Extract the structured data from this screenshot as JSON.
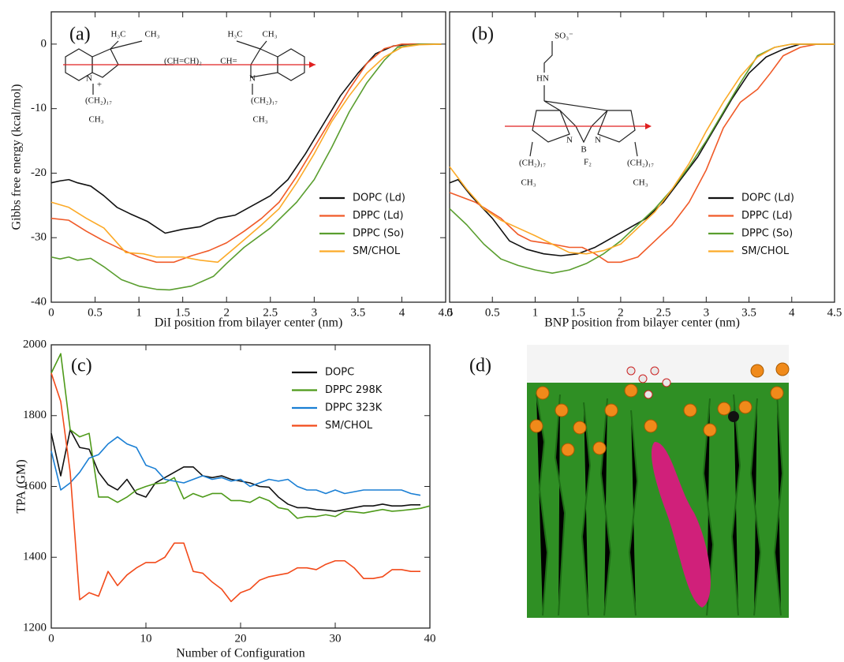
{
  "chart_data": [
    {
      "type": "line",
      "panel_label": "(a)",
      "xlabel": "DiI position from bilayer center (nm)",
      "ylabel": "Gibbs free energy (kcal/mol)",
      "xlim": [
        0,
        4.5
      ],
      "ylim": [
        -40,
        5
      ],
      "xticks": [
        0,
        0.5,
        1,
        1.5,
        2,
        2.5,
        3,
        3.5,
        4,
        4.5
      ],
      "yticks": [
        -40,
        -30,
        -20,
        -10,
        0
      ],
      "legend_position": "center-right",
      "annotations": [
        "H₃C",
        "CH₃",
        "(CH=CH)₂",
        "CH=",
        "H₃C",
        "CH₃",
        "N",
        "+",
        "N",
        "(CH₂)₁₇",
        "CH₃",
        "(CH₂)₁₇",
        "CH₃"
      ],
      "series": [
        {
          "name": "DOPC (Ld)",
          "color": "#111111",
          "x": [
            0,
            0.1,
            0.2,
            0.3,
            0.45,
            0.6,
            0.75,
            0.9,
            1.1,
            1.3,
            1.5,
            1.7,
            1.9,
            2.1,
            2.3,
            2.5,
            2.7,
            2.9,
            3.1,
            3.3,
            3.5,
            3.7,
            3.9,
            4.1,
            4.3,
            4.45
          ],
          "values": [
            -21.5,
            -21.2,
            -21,
            -21.5,
            -22,
            -23.5,
            -25.3,
            -26.3,
            -27.5,
            -29.3,
            -28.7,
            -28.3,
            -27,
            -26.5,
            -25,
            -23.5,
            -21,
            -17,
            -12.5,
            -8,
            -4.5,
            -1.5,
            -0.3,
            0,
            0,
            0
          ]
        },
        {
          "name": "DPPC (Ld)",
          "color": "#f05a28",
          "x": [
            0,
            0.2,
            0.4,
            0.6,
            0.8,
            1,
            1.2,
            1.4,
            1.6,
            1.8,
            2,
            2.2,
            2.4,
            2.6,
            2.8,
            3,
            3.2,
            3.4,
            3.6,
            3.8,
            4,
            4.45
          ],
          "values": [
            -27,
            -27.3,
            -29,
            -30.5,
            -31.8,
            -33,
            -33.8,
            -33.8,
            -32.8,
            -32,
            -30.8,
            -29,
            -27,
            -24.5,
            -20.5,
            -16,
            -11.5,
            -7,
            -3,
            -0.7,
            0,
            0
          ]
        },
        {
          "name": "DPPC (So)",
          "color": "#5a9e2f",
          "x": [
            0,
            0.1,
            0.2,
            0.3,
            0.45,
            0.6,
            0.8,
            1,
            1.2,
            1.35,
            1.6,
            1.85,
            2,
            2.2,
            2.5,
            2.8,
            3,
            3.2,
            3.4,
            3.6,
            3.8,
            3.95,
            4.2,
            4.45
          ],
          "values": [
            -33,
            -33.3,
            -33,
            -33.5,
            -33.2,
            -34.5,
            -36.5,
            -37.5,
            -38,
            -38.1,
            -37.5,
            -36,
            -34,
            -31.5,
            -28.5,
            -24.5,
            -21,
            -16,
            -10.5,
            -6,
            -2.5,
            -0.5,
            0,
            0
          ]
        },
        {
          "name": "SM/CHOL",
          "color": "#fcaa28",
          "x": [
            0,
            0.2,
            0.4,
            0.6,
            0.85,
            1.05,
            1.2,
            1.5,
            1.7,
            1.9,
            2.1,
            2.4,
            2.6,
            2.8,
            3,
            3.2,
            3.4,
            3.6,
            3.8,
            4,
            4.2,
            4.45
          ],
          "values": [
            -24.5,
            -25.3,
            -27,
            -28.5,
            -32.3,
            -32.5,
            -33,
            -33,
            -33.5,
            -33.8,
            -31.5,
            -28,
            -25.5,
            -21.5,
            -17,
            -12,
            -8,
            -4.5,
            -2,
            -0.5,
            -0.1,
            0
          ]
        }
      ]
    },
    {
      "type": "line",
      "panel_label": "(b)",
      "xlabel": "BNP position from bilayer center (nm)",
      "xlim": [
        0,
        4.5
      ],
      "ylim": [
        -40,
        5
      ],
      "xticks": [
        0,
        0.5,
        1,
        1.5,
        2,
        2.5,
        3,
        3.5,
        4,
        4.5
      ],
      "legend_position": "center-right",
      "annotations": [
        "SO₃⁻",
        "HN",
        "N",
        "B",
        "N",
        "F₂",
        "(CH₂)₁₇",
        "CH₃",
        "(CH₂)₁₇",
        "CH₃"
      ],
      "series": [
        {
          "name": "DOPC (Ld)",
          "color": "#111111",
          "x": [
            0,
            0.1,
            0.25,
            0.5,
            0.7,
            0.9,
            1.1,
            1.3,
            1.5,
            1.7,
            1.9,
            2.1,
            2.3,
            2.5,
            2.7,
            2.9,
            3.1,
            3.3,
            3.5,
            3.7,
            3.9,
            4.1,
            4.5
          ],
          "values": [
            -21.5,
            -21,
            -23.5,
            -27,
            -30.5,
            -31.8,
            -32.5,
            -32.8,
            -32.5,
            -31.5,
            -30,
            -28.5,
            -27,
            -24.5,
            -21,
            -17.5,
            -13,
            -8.5,
            -4.5,
            -2,
            -0.8,
            0,
            0
          ]
        },
        {
          "name": "DPPC (Ld)",
          "color": "#f05a28",
          "x": [
            0,
            0.3,
            0.6,
            0.8,
            0.95,
            1.2,
            1.4,
            1.55,
            1.7,
            1.85,
            2,
            2.2,
            2.4,
            2.6,
            2.8,
            3,
            3.2,
            3.4,
            3.6,
            3.75,
            3.9,
            4.1,
            4.3,
            4.5
          ],
          "values": [
            -23,
            -24.5,
            -27,
            -29.5,
            -30.5,
            -31,
            -31.5,
            -31.5,
            -32.5,
            -33.8,
            -33.8,
            -33,
            -30.5,
            -28,
            -24.5,
            -19.5,
            -13,
            -9,
            -7,
            -4.5,
            -1.8,
            -0.5,
            0,
            0
          ]
        },
        {
          "name": "DPPC (So)",
          "color": "#5a9e2f",
          "x": [
            0,
            0.2,
            0.4,
            0.6,
            0.8,
            1,
            1.2,
            1.4,
            1.6,
            1.8,
            2,
            2.2,
            2.4,
            2.6,
            2.8,
            3,
            3.2,
            3.4,
            3.6,
            3.8,
            4,
            4.5
          ],
          "values": [
            -25.5,
            -28,
            -31,
            -33.3,
            -34.3,
            -35,
            -35.5,
            -35,
            -34,
            -32.5,
            -30.5,
            -28,
            -25.5,
            -22.5,
            -19,
            -15,
            -10.5,
            -6,
            -1.8,
            -0.5,
            0,
            0
          ]
        },
        {
          "name": "SM/CHOL",
          "color": "#fcaa28",
          "x": [
            0,
            0.2,
            0.4,
            0.6,
            0.8,
            1,
            1.2,
            1.4,
            1.6,
            1.8,
            2,
            2.2,
            2.4,
            2.6,
            2.8,
            3,
            3.2,
            3.4,
            3.6,
            3.8,
            4,
            4.5
          ],
          "values": [
            -19,
            -22.5,
            -25.5,
            -27.3,
            -28.5,
            -29.7,
            -31,
            -32.3,
            -32.5,
            -32,
            -31,
            -28.5,
            -26,
            -22.5,
            -18.5,
            -13.5,
            -9,
            -5,
            -2,
            -0.5,
            0,
            0
          ]
        }
      ]
    },
    {
      "type": "line",
      "panel_label": "(c)",
      "xlabel": "Number of Configuration",
      "ylabel": "TPA (GM)",
      "xlim": [
        0,
        40
      ],
      "ylim": [
        1200,
        2000
      ],
      "xticks": [
        0,
        10,
        20,
        30,
        40
      ],
      "yticks": [
        1200,
        1400,
        1600,
        1800,
        2000
      ],
      "legend_position": "upper-right",
      "x": [
        0,
        1,
        2,
        3,
        4,
        5,
        6,
        7,
        8,
        9,
        10,
        11,
        12,
        13,
        14,
        15,
        16,
        17,
        18,
        19,
        20,
        21,
        22,
        23,
        24,
        25,
        26,
        27,
        28,
        29,
        30,
        31,
        32,
        33,
        34,
        35,
        36,
        37,
        38,
        39,
        40
      ],
      "series": [
        {
          "name": "DOPC",
          "color": "#111111",
          "values": [
            1750,
            1630,
            1760,
            1710,
            1705,
            1640,
            1605,
            1590,
            1620,
            1580,
            1570,
            1610,
            1625,
            1640,
            1655,
            1655,
            1630,
            1625,
            1630,
            1620,
            1615,
            1610,
            1600,
            1598,
            1570,
            1550,
            1540,
            1540,
            1535,
            1533,
            1530,
            1535,
            1540,
            1545,
            1545,
            1550,
            1545,
            1545,
            1548,
            1548,
            null
          ]
        },
        {
          "name": "DPPC 298K",
          "color": "#4e9a1a",
          "values": [
            1920,
            1975,
            1760,
            1740,
            1750,
            1570,
            1570,
            1555,
            1570,
            1590,
            1600,
            1608,
            1610,
            1625,
            1565,
            1580,
            1570,
            1580,
            1580,
            1560,
            1560,
            1555,
            1570,
            1560,
            1540,
            1535,
            1510,
            1515,
            1515,
            1520,
            1515,
            1530,
            1528,
            1525,
            1530,
            1535,
            1530,
            1532,
            1535,
            1538,
            1545
          ]
        },
        {
          "name": "DPPC 323K",
          "color": "#1a7fd4",
          "values": [
            1700,
            1590,
            1610,
            1640,
            1680,
            1690,
            1720,
            1740,
            1720,
            1710,
            1660,
            1650,
            1620,
            1615,
            1610,
            1620,
            1630,
            1620,
            1625,
            1615,
            1620,
            1600,
            1610,
            1620,
            1615,
            1620,
            1600,
            1590,
            1590,
            1580,
            1590,
            1580,
            1585,
            1590,
            1590,
            1590,
            1590,
            1590,
            1580,
            1575,
            null
          ]
        },
        {
          "name": "SM/CHOL",
          "color": "#f24a1a",
          "values": [
            1920,
            1840,
            1640,
            1280,
            1300,
            1290,
            1360,
            1320,
            1350,
            1370,
            1385,
            1385,
            1400,
            1440,
            1440,
            1360,
            1355,
            1330,
            1310,
            1275,
            1300,
            1310,
            1335,
            1345,
            1350,
            1355,
            1370,
            1370,
            1365,
            1380,
            1390,
            1390,
            1370,
            1340,
            1340,
            1345,
            1365,
            1365,
            1360,
            1360,
            null
          ]
        }
      ]
    }
  ],
  "panel_d": {
    "label": "(d)"
  }
}
